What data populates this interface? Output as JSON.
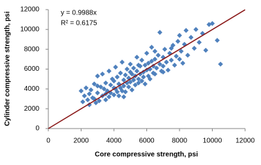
{
  "chart_data": {
    "type": "scatter",
    "xlabel": "Core compressive strength, psi",
    "ylabel": "Cylinder compressive strength, psi",
    "annotations": [
      "y = 0.9988x",
      "R² = 0.6175"
    ],
    "trendline_slope": 0.9988,
    "trendline_color": "#8b1a1a",
    "xlim": [
      0,
      12000
    ],
    "xticks": [
      0,
      2000,
      4000,
      6000,
      8000,
      10000,
      12000
    ],
    "ylim": [
      0,
      12000
    ],
    "yticks": [
      0,
      2000,
      4000,
      6000,
      8000,
      10000,
      12000
    ],
    "x": [
      2000,
      2100,
      2200,
      2300,
      2400,
      2500,
      2500,
      2600,
      2700,
      2800,
      2900,
      3000,
      3000,
      3100,
      3200,
      3300,
      3300,
      3400,
      3500,
      3500,
      3600,
      3700,
      3700,
      3800,
      3800,
      3900,
      4000,
      4000,
      4100,
      4100,
      4200,
      4200,
      4300,
      4300,
      4400,
      4400,
      4500,
      4500,
      4600,
      4600,
      4700,
      4700,
      4800,
      4800,
      4900,
      4900,
      5000,
      5000,
      5100,
      5100,
      5200,
      5200,
      5300,
      5300,
      5400,
      5400,
      5500,
      5500,
      5600,
      5600,
      5700,
      5700,
      5800,
      5800,
      5900,
      5900,
      6000,
      6000,
      6100,
      6100,
      6200,
      6200,
      6300,
      6300,
      6400,
      6400,
      6500,
      6500,
      6600,
      6700,
      6800,
      6900,
      7000,
      7000,
      7100,
      7200,
      7300,
      7400,
      7500,
      7600,
      7700,
      7800,
      7900,
      8000,
      8100,
      8200,
      8300,
      8400,
      8500,
      8700,
      8900,
      9000,
      9200,
      9400,
      9600,
      9800,
      10000,
      10300,
      10500,
      3000,
      3500,
      4000,
      5000,
      5500,
      6500,
      7000,
      7500,
      8000,
      6800,
      2800,
      4600
    ],
    "series": [
      {
        "name": "Cylinder",
        "color": "#4f81bd",
        "values": [
          3800,
          2700,
          3300,
          4100,
          2900,
          3500,
          2400,
          3900,
          3100,
          4500,
          2600,
          3600,
          5300,
          2800,
          4200,
          3300,
          5500,
          4000,
          2900,
          4600,
          3800,
          5800,
          3200,
          4400,
          3600,
          5000,
          3400,
          4800,
          6200,
          4000,
          3700,
          5200,
          4500,
          3300,
          5600,
          4100,
          3800,
          6700,
          4900,
          4300,
          5400,
          3700,
          4600,
          6000,
          4200,
          5100,
          4700,
          6500,
          3900,
          5500,
          4900,
          6100,
          5300,
          4400,
          5800,
          7200,
          5000,
          4600,
          6300,
          5500,
          4800,
          6900,
          5700,
          5200,
          6400,
          4500,
          5900,
          7600,
          5300,
          6600,
          6000,
          5000,
          6800,
          8200,
          5600,
          6300,
          7000,
          5500,
          6100,
          7400,
          6500,
          5800,
          7200,
          6300,
          8000,
          6700,
          5900,
          7600,
          6900,
          8400,
          6400,
          7300,
          8800,
          7000,
          7800,
          6600,
          8500,
          9900,
          7400,
          9200,
          8100,
          10000,
          8700,
          9600,
          7900,
          10500,
          10600,
          8900,
          6500,
          4300,
          3500,
          4100,
          5700,
          6400,
          7800,
          5700,
          8100,
          9400,
          9700,
          3000,
          3200
        ]
      }
    ]
  }
}
